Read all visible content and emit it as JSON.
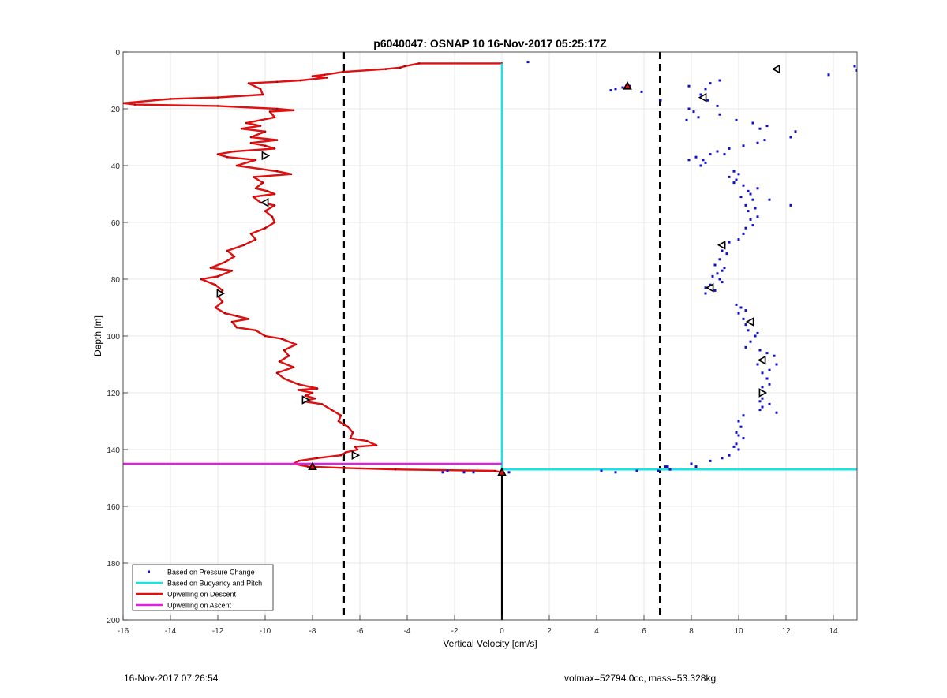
{
  "chart_data": {
    "type": "scatter",
    "title": "p6040047: OSNAP 10 16-Nov-2017 05:25:17Z",
    "xlabel": "Vertical Velocity [cm/s]",
    "ylabel": "Depth [m]",
    "xlim": [
      -16,
      15
    ],
    "ylim": [
      0,
      200
    ],
    "y_reversed": true,
    "grid": true,
    "legend_position": "bottom-left",
    "x_ticks": [
      -16,
      -14,
      -12,
      -10,
      -8,
      -6,
      -4,
      -2,
      0,
      2,
      4,
      6,
      8,
      10,
      12,
      14
    ],
    "y_ticks": [
      0,
      20,
      40,
      60,
      80,
      100,
      120,
      140,
      160,
      180,
      200
    ],
    "reference_lines": {
      "dashed_x": [
        -6.67,
        6.67
      ],
      "solid_x": 0,
      "solid_x_from_depth": 147,
      "dashed_color": "#000000"
    },
    "series": [
      {
        "name": "Based on Pressure Change",
        "kind": "points",
        "color": "#1010cc",
        "points": [
          [
            1.1,
            3.5
          ],
          [
            14.9,
            5
          ],
          [
            15,
            6.5
          ],
          [
            13.8,
            8
          ],
          [
            11.7,
            6.5
          ],
          [
            4.6,
            13.5
          ],
          [
            4.8,
            13
          ],
          [
            5.1,
            12.5
          ],
          [
            5.4,
            12
          ],
          [
            5.9,
            14
          ],
          [
            6.7,
            17
          ],
          [
            7.9,
            12
          ],
          [
            8.8,
            11
          ],
          [
            9.2,
            10
          ],
          [
            8.6,
            13
          ],
          [
            8.4,
            15
          ],
          [
            8.7,
            17
          ],
          [
            9.1,
            19
          ],
          [
            9.2,
            22
          ],
          [
            7.9,
            20
          ],
          [
            8.1,
            21
          ],
          [
            8.3,
            23
          ],
          [
            7.8,
            24
          ],
          [
            9.9,
            24
          ],
          [
            10.6,
            25
          ],
          [
            11.2,
            26
          ],
          [
            10.9,
            27
          ],
          [
            12.4,
            28
          ],
          [
            12.2,
            30
          ],
          [
            11.1,
            31
          ],
          [
            10.8,
            32
          ],
          [
            10.2,
            33
          ],
          [
            9.6,
            34
          ],
          [
            9.1,
            35
          ],
          [
            8.8,
            36
          ],
          [
            9.4,
            36
          ],
          [
            8.2,
            37
          ],
          [
            7.9,
            38
          ],
          [
            8.5,
            38
          ],
          [
            8.6,
            39
          ],
          [
            8.4,
            40
          ],
          [
            9.8,
            42
          ],
          [
            10.0,
            43
          ],
          [
            9.6,
            44
          ],
          [
            9.9,
            45
          ],
          [
            9.8,
            46
          ],
          [
            10.2,
            47
          ],
          [
            10.4,
            49
          ],
          [
            10.8,
            48
          ],
          [
            10.5,
            50
          ],
          [
            10.1,
            51
          ],
          [
            10.6,
            52
          ],
          [
            11.3,
            52
          ],
          [
            10.3,
            54
          ],
          [
            12.2,
            54
          ],
          [
            10.7,
            55
          ],
          [
            10.4,
            56
          ],
          [
            10.8,
            58
          ],
          [
            10.5,
            59
          ],
          [
            10.6,
            61
          ],
          [
            10.3,
            62
          ],
          [
            10.2,
            64
          ],
          [
            10.0,
            66
          ],
          [
            9.6,
            67
          ],
          [
            9.4,
            68
          ],
          [
            9.3,
            70
          ],
          [
            9.5,
            71
          ],
          [
            9.2,
            73
          ],
          [
            9.0,
            75
          ],
          [
            9.4,
            76
          ],
          [
            9.3,
            77
          ],
          [
            9.1,
            78
          ],
          [
            8.9,
            79
          ],
          [
            9.2,
            80
          ],
          [
            9.3,
            81
          ],
          [
            8.8,
            82
          ],
          [
            8.6,
            83
          ],
          [
            9.0,
            84
          ],
          [
            8.6,
            85
          ],
          [
            9.9,
            89
          ],
          [
            10.1,
            90
          ],
          [
            10.3,
            91
          ],
          [
            10.0,
            92
          ],
          [
            10.2,
            94
          ],
          [
            10.6,
            95
          ],
          [
            10.3,
            96
          ],
          [
            10.4,
            98
          ],
          [
            10.8,
            99
          ],
          [
            10.7,
            100
          ],
          [
            10.5,
            102
          ],
          [
            10.3,
            104
          ],
          [
            10.9,
            105
          ],
          [
            11.2,
            106
          ],
          [
            11.5,
            107
          ],
          [
            11.1,
            108
          ],
          [
            11.6,
            110
          ],
          [
            10.8,
            110
          ],
          [
            11.3,
            112
          ],
          [
            11.0,
            113
          ],
          [
            11.2,
            115
          ],
          [
            11.3,
            117
          ],
          [
            11.0,
            118
          ],
          [
            11.1,
            120
          ],
          [
            11.0,
            122
          ],
          [
            10.9,
            123
          ],
          [
            11.3,
            124
          ],
          [
            11.0,
            125
          ],
          [
            11.6,
            127
          ],
          [
            10.9,
            126
          ],
          [
            10.2,
            128
          ],
          [
            10.0,
            130
          ],
          [
            10.1,
            132
          ],
          [
            9.9,
            134
          ],
          [
            10.0,
            135
          ],
          [
            10.2,
            136
          ],
          [
            9.9,
            138
          ],
          [
            9.8,
            139
          ],
          [
            10.0,
            140
          ],
          [
            9.6,
            142
          ],
          [
            9.3,
            143
          ],
          [
            8.8,
            144
          ],
          [
            8.0,
            145
          ],
          [
            8.2,
            146
          ],
          [
            7.0,
            146
          ],
          [
            6.9,
            146
          ],
          [
            -2.5,
            148
          ],
          [
            -2.3,
            147.5
          ],
          [
            -1.6,
            148
          ],
          [
            -1.2,
            148
          ],
          [
            0.3,
            148
          ],
          [
            4.2,
            147.5
          ],
          [
            4.8,
            148
          ],
          [
            5.7,
            147.5
          ],
          [
            6.6,
            147.5
          ],
          [
            7.1,
            147
          ]
        ]
      },
      {
        "name": "Based on Buoyancy and Pitch",
        "kind": "line",
        "color": "#19e3e3",
        "points": [
          [
            0,
            4
          ],
          [
            0,
            145
          ],
          [
            0,
            147
          ],
          [
            15,
            147
          ]
        ]
      },
      {
        "name": "Upwelling on Descent",
        "kind": "line",
        "color": "#e01010",
        "points": [
          [
            0,
            4
          ],
          [
            -3.5,
            4
          ],
          [
            -4.1,
            5
          ],
          [
            -4.3,
            5.5
          ],
          [
            -4.9,
            6
          ],
          [
            -6.7,
            7
          ],
          [
            -7.5,
            8
          ],
          [
            -8.0,
            8.5
          ],
          [
            -7.4,
            9
          ],
          [
            -8.5,
            10
          ],
          [
            -9.5,
            10.5
          ],
          [
            -10.7,
            11
          ],
          [
            -10.2,
            13
          ],
          [
            -10.1,
            15
          ],
          [
            -12.0,
            16
          ],
          [
            -14.0,
            16.5
          ],
          [
            -16.0,
            18
          ],
          [
            -15.5,
            18.5
          ],
          [
            -12.0,
            19
          ],
          [
            -9.5,
            20
          ],
          [
            -8.8,
            20.5
          ],
          [
            -9.8,
            21
          ],
          [
            -9.6,
            23
          ],
          [
            -10.8,
            25
          ],
          [
            -10.2,
            26
          ],
          [
            -11.0,
            27
          ],
          [
            -10.0,
            28
          ],
          [
            -10.6,
            30
          ],
          [
            -9.5,
            31
          ],
          [
            -10.6,
            32
          ],
          [
            -10.0,
            33
          ],
          [
            -9.6,
            34
          ],
          [
            -11.3,
            35
          ],
          [
            -12.0,
            36
          ],
          [
            -11.6,
            37
          ],
          [
            -10.4,
            38
          ],
          [
            -11.2,
            40
          ],
          [
            -9.5,
            42
          ],
          [
            -8.9,
            43
          ],
          [
            -10.5,
            44
          ],
          [
            -10.1,
            46
          ],
          [
            -10.4,
            48
          ],
          [
            -9.9,
            49
          ],
          [
            -9.6,
            50
          ],
          [
            -10.5,
            51
          ],
          [
            -10.2,
            53
          ],
          [
            -9.6,
            54
          ],
          [
            -10.0,
            56
          ],
          [
            -9.7,
            58
          ],
          [
            -9.6,
            60
          ],
          [
            -10.0,
            62
          ],
          [
            -10.6,
            64
          ],
          [
            -10.4,
            66
          ],
          [
            -10.9,
            68
          ],
          [
            -11.6,
            70
          ],
          [
            -11.3,
            72
          ],
          [
            -11.7,
            74
          ],
          [
            -12.3,
            76
          ],
          [
            -11.4,
            77
          ],
          [
            -12.0,
            79
          ],
          [
            -12.7,
            80
          ],
          [
            -12.1,
            82
          ],
          [
            -11.8,
            84
          ],
          [
            -12.0,
            86
          ],
          [
            -11.8,
            88
          ],
          [
            -12.1,
            90
          ],
          [
            -11.7,
            92
          ],
          [
            -11.2,
            93
          ],
          [
            -10.7,
            94
          ],
          [
            -11.4,
            95
          ],
          [
            -11.2,
            97
          ],
          [
            -10.4,
            98
          ],
          [
            -10.0,
            100
          ],
          [
            -9.3,
            101
          ],
          [
            -8.7,
            103
          ],
          [
            -9.2,
            105
          ],
          [
            -9.0,
            107
          ],
          [
            -9.4,
            109
          ],
          [
            -8.8,
            111
          ],
          [
            -9.5,
            113
          ],
          [
            -9.2,
            115
          ],
          [
            -8.6,
            117
          ],
          [
            -7.8,
            118.5
          ],
          [
            -8.6,
            119
          ],
          [
            -8.0,
            120
          ],
          [
            -8.3,
            121
          ],
          [
            -7.9,
            122
          ],
          [
            -8.4,
            123
          ],
          [
            -7.6,
            124
          ],
          [
            -7.2,
            126
          ],
          [
            -6.8,
            128
          ],
          [
            -6.9,
            130
          ],
          [
            -6.5,
            132
          ],
          [
            -6.3,
            134
          ],
          [
            -6.4,
            136
          ],
          [
            -5.7,
            137
          ],
          [
            -5.3,
            138.5
          ],
          [
            -6.2,
            139
          ],
          [
            -6.1,
            140
          ],
          [
            -6.6,
            141
          ],
          [
            -6.8,
            142
          ],
          [
            -7.8,
            143
          ],
          [
            -8.6,
            144
          ],
          [
            -8.8,
            145
          ],
          [
            -8.2,
            146
          ],
          [
            -6.6,
            146.5
          ],
          [
            -4.5,
            147
          ],
          [
            -0.3,
            147.5
          ],
          [
            0,
            148
          ]
        ]
      },
      {
        "name": "Upwelling on Ascent",
        "kind": "line",
        "color": "#dd22dd",
        "points": [
          [
            -16,
            145
          ],
          [
            0,
            145
          ]
        ]
      }
    ],
    "markers": [
      {
        "symbol": "triangle-up",
        "fill": "#e01010",
        "x": 5.3,
        "y": 12
      },
      {
        "symbol": "triangle-up",
        "fill": "#e01010",
        "x": -8.0,
        "y": 146
      },
      {
        "symbol": "triangle-up",
        "fill": "#e01010",
        "x": 0,
        "y": 148
      },
      {
        "symbol": "triangle-left",
        "fill": "none",
        "x": 11.6,
        "y": 6
      },
      {
        "symbol": "triangle-left",
        "fill": "none",
        "x": 8.5,
        "y": 16
      },
      {
        "symbol": "triangle-right",
        "fill": "none",
        "x": -10.0,
        "y": 36.5
      },
      {
        "symbol": "triangle-left",
        "fill": "none",
        "x": -10.0,
        "y": 53
      },
      {
        "symbol": "triangle-left",
        "fill": "none",
        "x": 9.3,
        "y": 68
      },
      {
        "symbol": "triangle-right",
        "fill": "none",
        "x": -11.9,
        "y": 85
      },
      {
        "symbol": "triangle-left",
        "fill": "none",
        "x": 8.8,
        "y": 83
      },
      {
        "symbol": "triangle-left",
        "fill": "none",
        "x": 10.5,
        "y": 95
      },
      {
        "symbol": "triangle-left",
        "fill": "none",
        "x": 11.0,
        "y": 108.5
      },
      {
        "symbol": "triangle-right",
        "fill": "none",
        "x": -8.3,
        "y": 122.5
      },
      {
        "symbol": "triangle-right",
        "fill": "none",
        "x": 11.0,
        "y": 120
      },
      {
        "symbol": "triangle-right",
        "fill": "none",
        "x": -6.2,
        "y": 142
      }
    ]
  },
  "footer": {
    "timestamp": "16-Nov-2017 07:26:54",
    "info": "volmax=52794.0cc, mass=53.328kg"
  }
}
